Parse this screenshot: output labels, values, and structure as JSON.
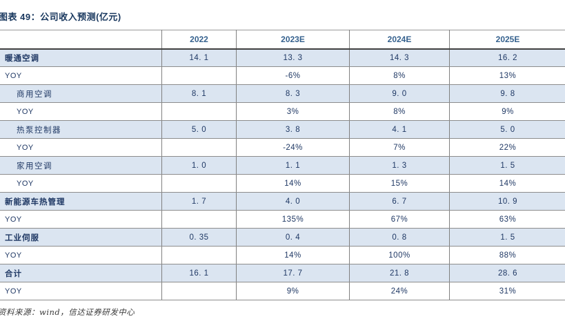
{
  "title": "图表 49：公司收入预测(亿元)",
  "source": "资料来源：wind，信达证券研发中心",
  "colors": {
    "row_highlight_bg": "#dbe5f1",
    "text_navy": "#1f3864",
    "header_year_blue": "#35618e",
    "title_navy": "#17365d",
    "grid_gray": "#7f7f7f",
    "header_rule_dark": "#404040"
  },
  "table": {
    "columns": [
      "",
      "2022",
      "2023E",
      "2024E",
      "2025E"
    ],
    "rows": [
      {
        "label": "暖通空调",
        "type": "section",
        "indent": false,
        "values": [
          "14. 1",
          "13. 3",
          "14. 3",
          "16. 2"
        ]
      },
      {
        "label": "YOY",
        "type": "yoy",
        "indent": false,
        "values": [
          "",
          "-6%",
          "8%",
          "13%"
        ]
      },
      {
        "label": "商用空调",
        "type": "sub",
        "indent": true,
        "values": [
          "8. 1",
          "8. 3",
          "9. 0",
          "9. 8"
        ]
      },
      {
        "label": "YOY",
        "type": "yoy",
        "indent": true,
        "values": [
          "",
          "3%",
          "8%",
          "9%"
        ]
      },
      {
        "label": "热泵控制器",
        "type": "sub",
        "indent": true,
        "values": [
          "5. 0",
          "3. 8",
          "4. 1",
          "5. 0"
        ]
      },
      {
        "label": "YOY",
        "type": "yoy",
        "indent": true,
        "values": [
          "",
          "-24%",
          "7%",
          "22%"
        ]
      },
      {
        "label": "家用空调",
        "type": "sub",
        "indent": true,
        "values": [
          "1. 0",
          "1. 1",
          "1. 3",
          "1. 5"
        ]
      },
      {
        "label": "YOY",
        "type": "yoy",
        "indent": true,
        "values": [
          "",
          "14%",
          "15%",
          "14%"
        ]
      },
      {
        "label": "新能源车热管理",
        "type": "section",
        "indent": false,
        "values": [
          "1. 7",
          "4. 0",
          "6. 7",
          "10. 9"
        ]
      },
      {
        "label": "YOY",
        "type": "yoy",
        "indent": false,
        "values": [
          "",
          "135%",
          "67%",
          "63%"
        ]
      },
      {
        "label": "工业伺服",
        "type": "section",
        "indent": false,
        "values": [
          "0. 35",
          "0. 4",
          "0. 8",
          "1. 5"
        ]
      },
      {
        "label": "YOY",
        "type": "yoy",
        "indent": false,
        "values": [
          "",
          "14%",
          "100%",
          "88%"
        ]
      },
      {
        "label": "合计",
        "type": "section",
        "indent": false,
        "values": [
          "16. 1",
          "17. 7",
          "21. 8",
          "28. 6"
        ]
      },
      {
        "label": "YOY",
        "type": "yoy",
        "indent": false,
        "values": [
          "",
          "9%",
          "24%",
          "31%"
        ]
      }
    ]
  }
}
